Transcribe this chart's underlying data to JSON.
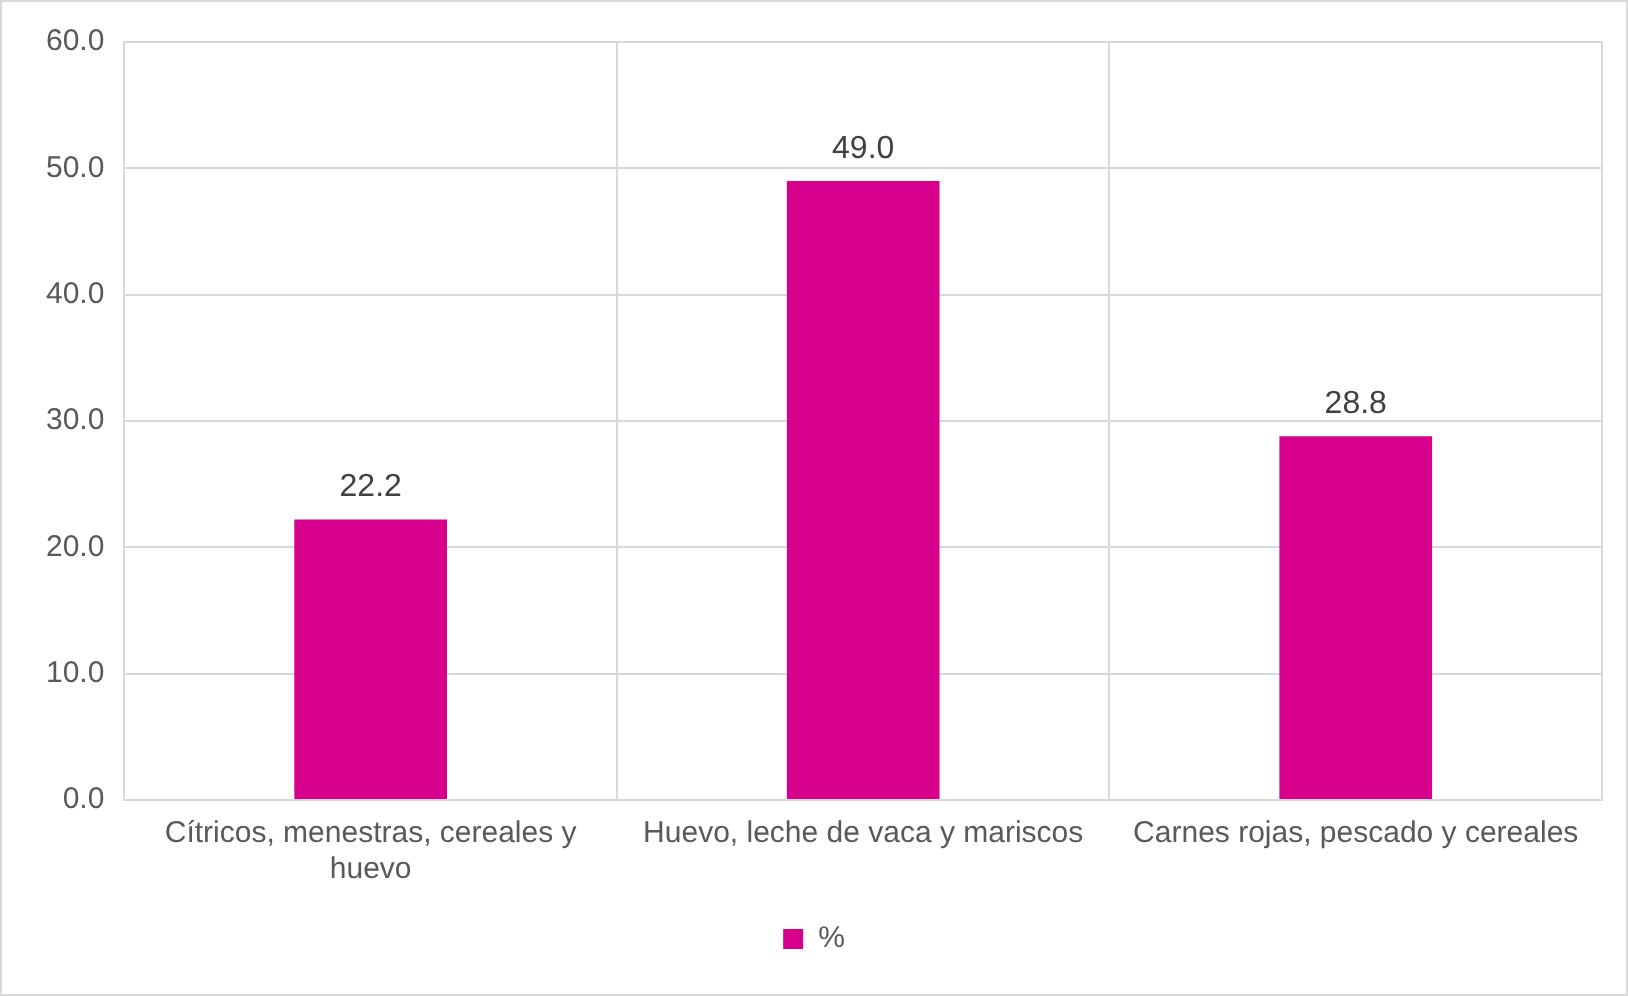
{
  "chart_data": {
    "type": "bar",
    "categories": [
      "Cítricos, menestras, cereales y huevo",
      "Huevo, leche de vaca y mariscos",
      "Carnes rojas, pescado y cereales"
    ],
    "series": [
      {
        "name": "%",
        "color": "#d6008d",
        "values": [
          22.2,
          49.0,
          28.8
        ],
        "value_labels": [
          "22.2",
          "49.0",
          "28.8"
        ]
      }
    ],
    "ylim": [
      0,
      60
    ],
    "yticks": [
      {
        "value": 0,
        "label": "0.0"
      },
      {
        "value": 10,
        "label": "10.0"
      },
      {
        "value": 20,
        "label": "20.0"
      },
      {
        "value": 30,
        "label": "30.0"
      },
      {
        "value": 40,
        "label": "40.0"
      },
      {
        "value": 50,
        "label": "50.0"
      },
      {
        "value": 60,
        "label": "60.0"
      }
    ],
    "grid": true,
    "legend": "bottom"
  }
}
